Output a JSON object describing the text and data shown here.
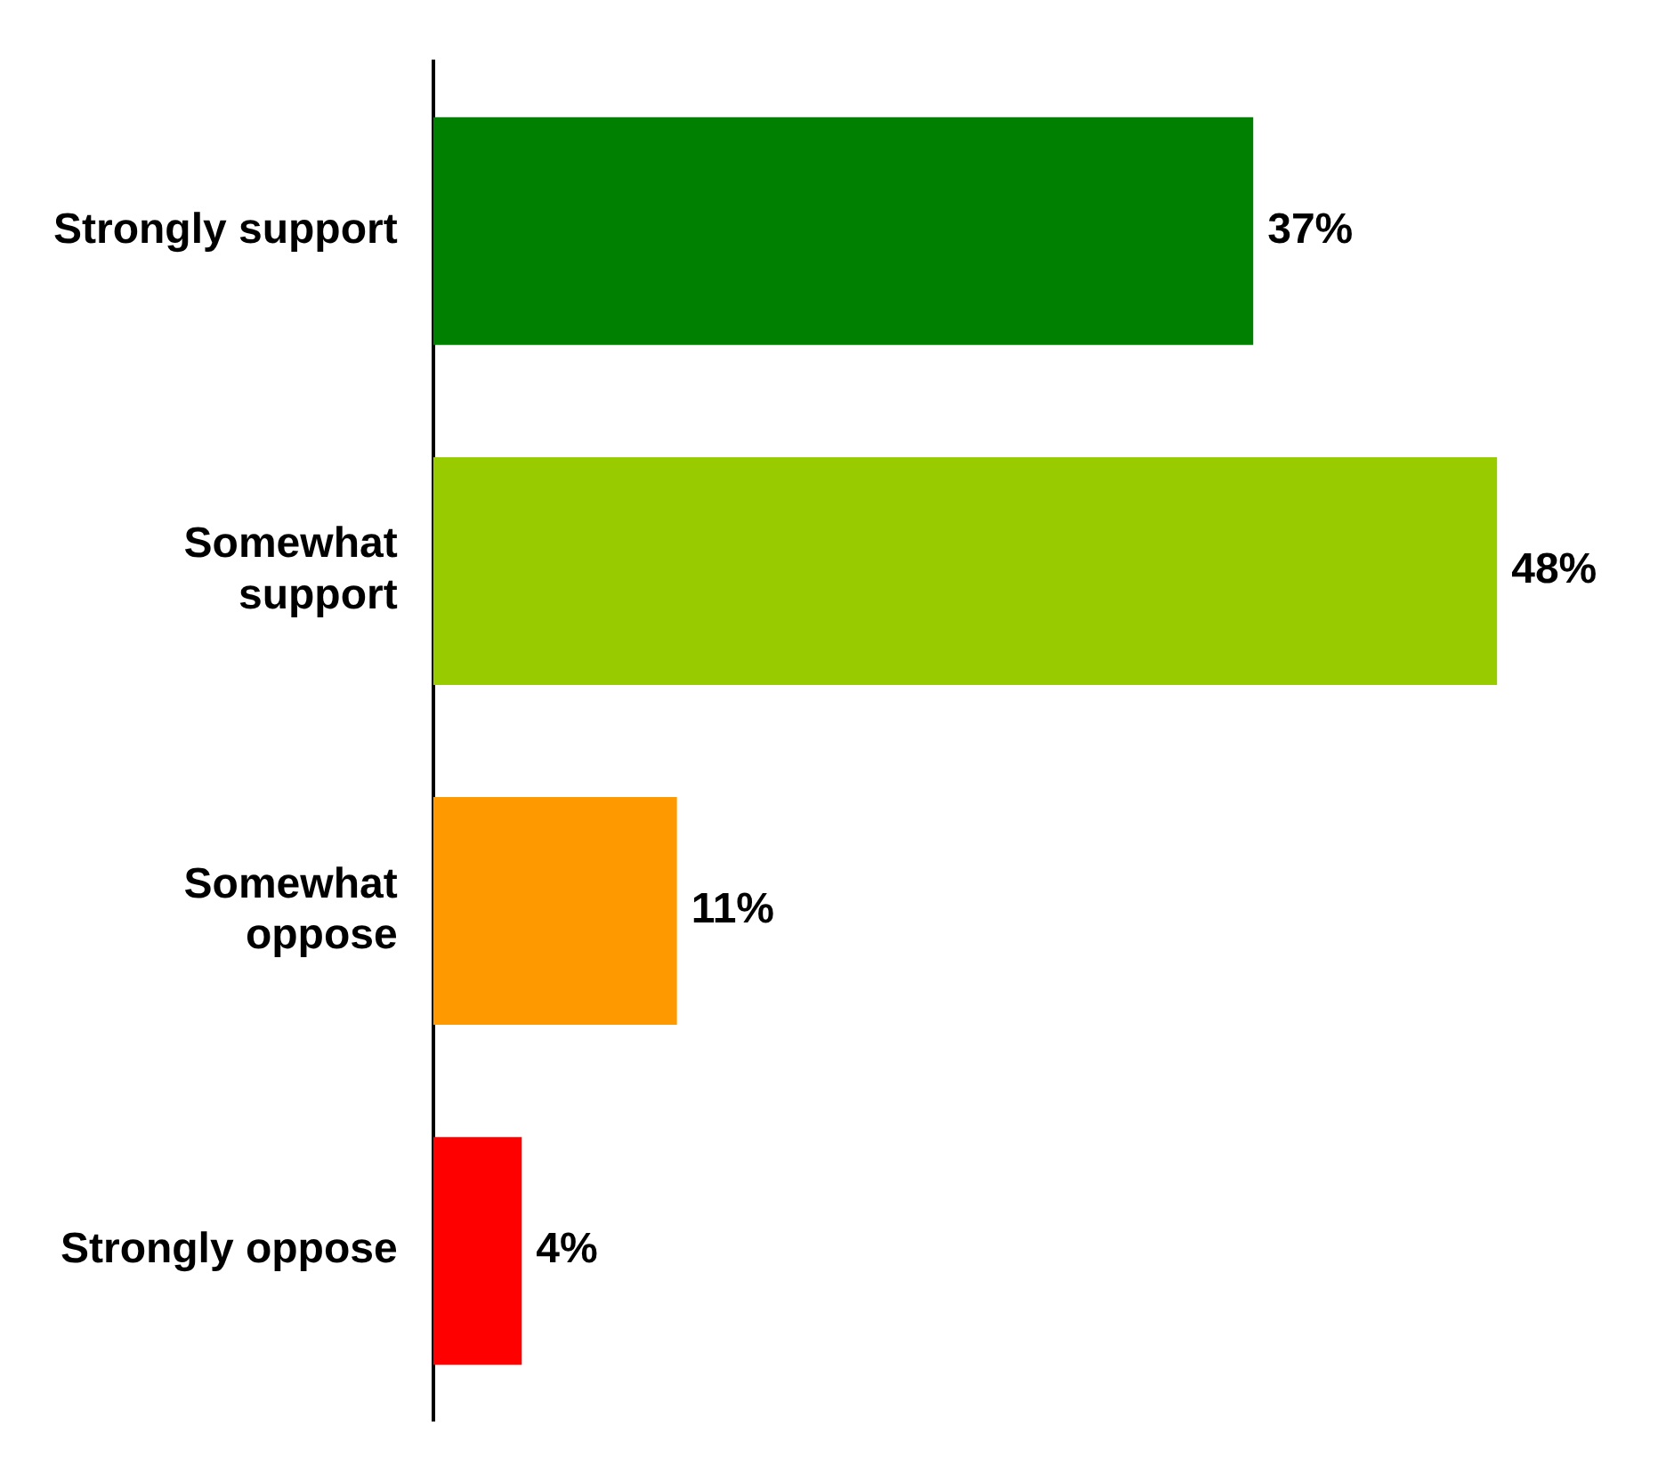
{
  "chart_data": {
    "type": "bar",
    "orientation": "horizontal",
    "categories": [
      "Strongly support",
      "Somewhat support",
      "Somewhat oppose",
      "Strongly oppose"
    ],
    "values": [
      37,
      48,
      11,
      4
    ],
    "colors": [
      "#008000",
      "#99cc00",
      "#ff9900",
      "#ff0000"
    ],
    "value_labels": [
      "37%",
      "48%",
      "11%",
      "4%"
    ],
    "legend": false
  }
}
